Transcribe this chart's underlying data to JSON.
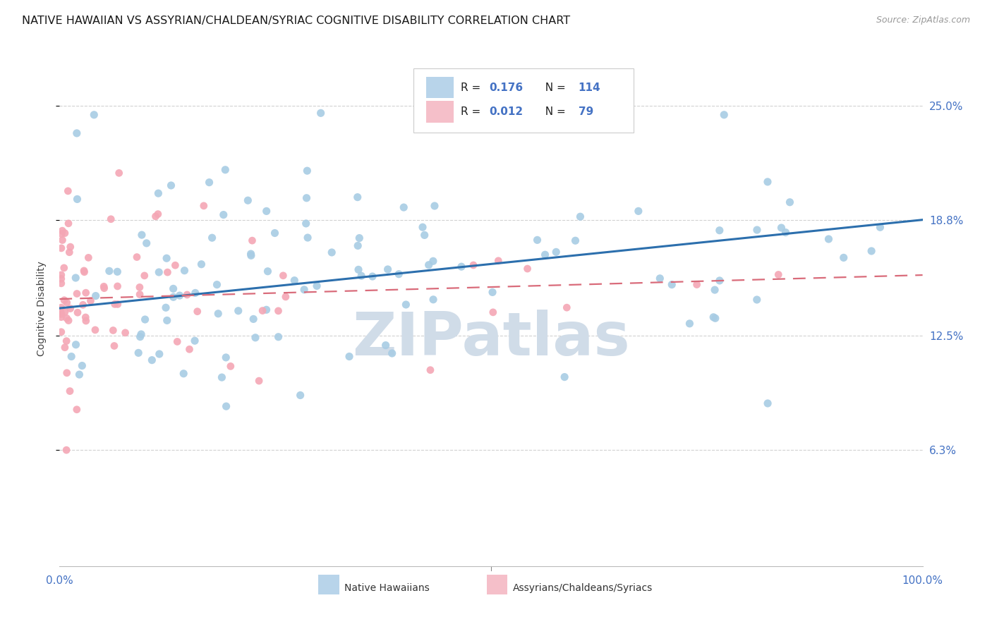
{
  "title": "NATIVE HAWAIIAN VS ASSYRIAN/CHALDEAN/SYRIAC COGNITIVE DISABILITY CORRELATION CHART",
  "source": "Source: ZipAtlas.com",
  "ylabel": "Cognitive Disability",
  "ytick_labels": [
    "25.0%",
    "18.8%",
    "12.5%",
    "6.3%"
  ],
  "ytick_values": [
    0.25,
    0.188,
    0.125,
    0.063
  ],
  "xlim": [
    0.0,
    1.0
  ],
  "ylim": [
    0.0,
    0.28
  ],
  "blue_R": 0.176,
  "blue_N": 114,
  "pink_R": 0.012,
  "pink_N": 79,
  "blue_scatter_color": "#a8cce4",
  "pink_scatter_color": "#f4a7b5",
  "blue_line_color": "#2c6fad",
  "pink_line_color": "#d96b7a",
  "legend_blue_fill": "#b8d4ea",
  "legend_pink_fill": "#f5bfc9",
  "background_color": "#ffffff",
  "grid_color": "#cccccc",
  "axis_label_color": "#4472c4",
  "watermark_color": "#d0dce8",
  "title_fontsize": 11.5,
  "tick_fontsize": 11,
  "legend_fontsize": 11
}
